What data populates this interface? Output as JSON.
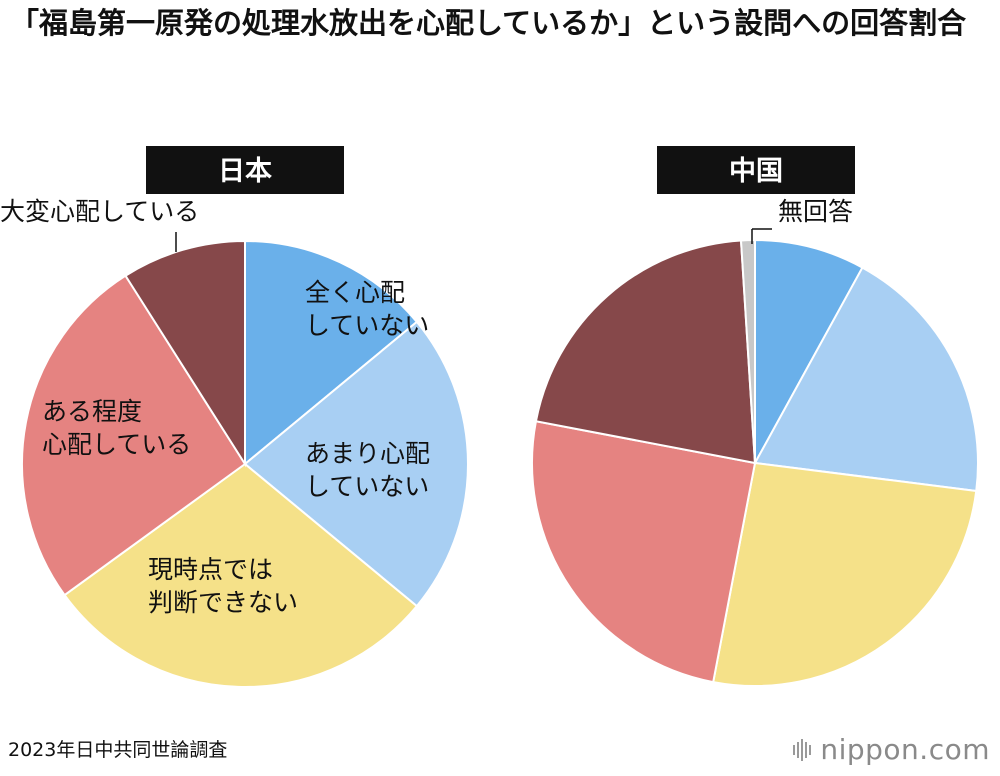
{
  "title": "「福島第一原発の処理水放出を心配しているか」という設問への回答割合",
  "chart_data": [
    {
      "type": "pie",
      "title": "日本",
      "categories": [
        "全く心配していない",
        "あまり心配していない",
        "現時点では判断できない",
        "ある程度心配している",
        "大変心配している"
      ],
      "values": [
        14,
        22,
        29,
        26,
        9
      ],
      "colors": [
        "#6ab0ea",
        "#a8cff3",
        "#f5e189",
        "#e58381",
        "#86484a"
      ],
      "labels": {
        "slice_0": [
          "全く心配",
          "していない"
        ],
        "slice_1": [
          "あまり心配",
          "していない"
        ],
        "slice_2": [
          "現時点では",
          "判断できない"
        ],
        "slice_3": [
          "ある程度",
          "心配している"
        ],
        "slice_4": [
          "大変心配している"
        ]
      }
    },
    {
      "type": "pie",
      "title": "中国",
      "categories": [
        "全く心配していない",
        "あまり心配していない",
        "現時点では判断できない",
        "ある程度心配している",
        "大変心配している",
        "無回答"
      ],
      "values": [
        8,
        19,
        26,
        25,
        21,
        1
      ],
      "colors": [
        "#6ab0ea",
        "#a8cff3",
        "#f5e189",
        "#e58381",
        "#86484a",
        "#c8c8c8"
      ],
      "labels": {
        "slice_5": [
          "無回答"
        ]
      }
    }
  ],
  "footer": {
    "source": "2023年日中共同世論調査",
    "brand": "nippon.com"
  }
}
